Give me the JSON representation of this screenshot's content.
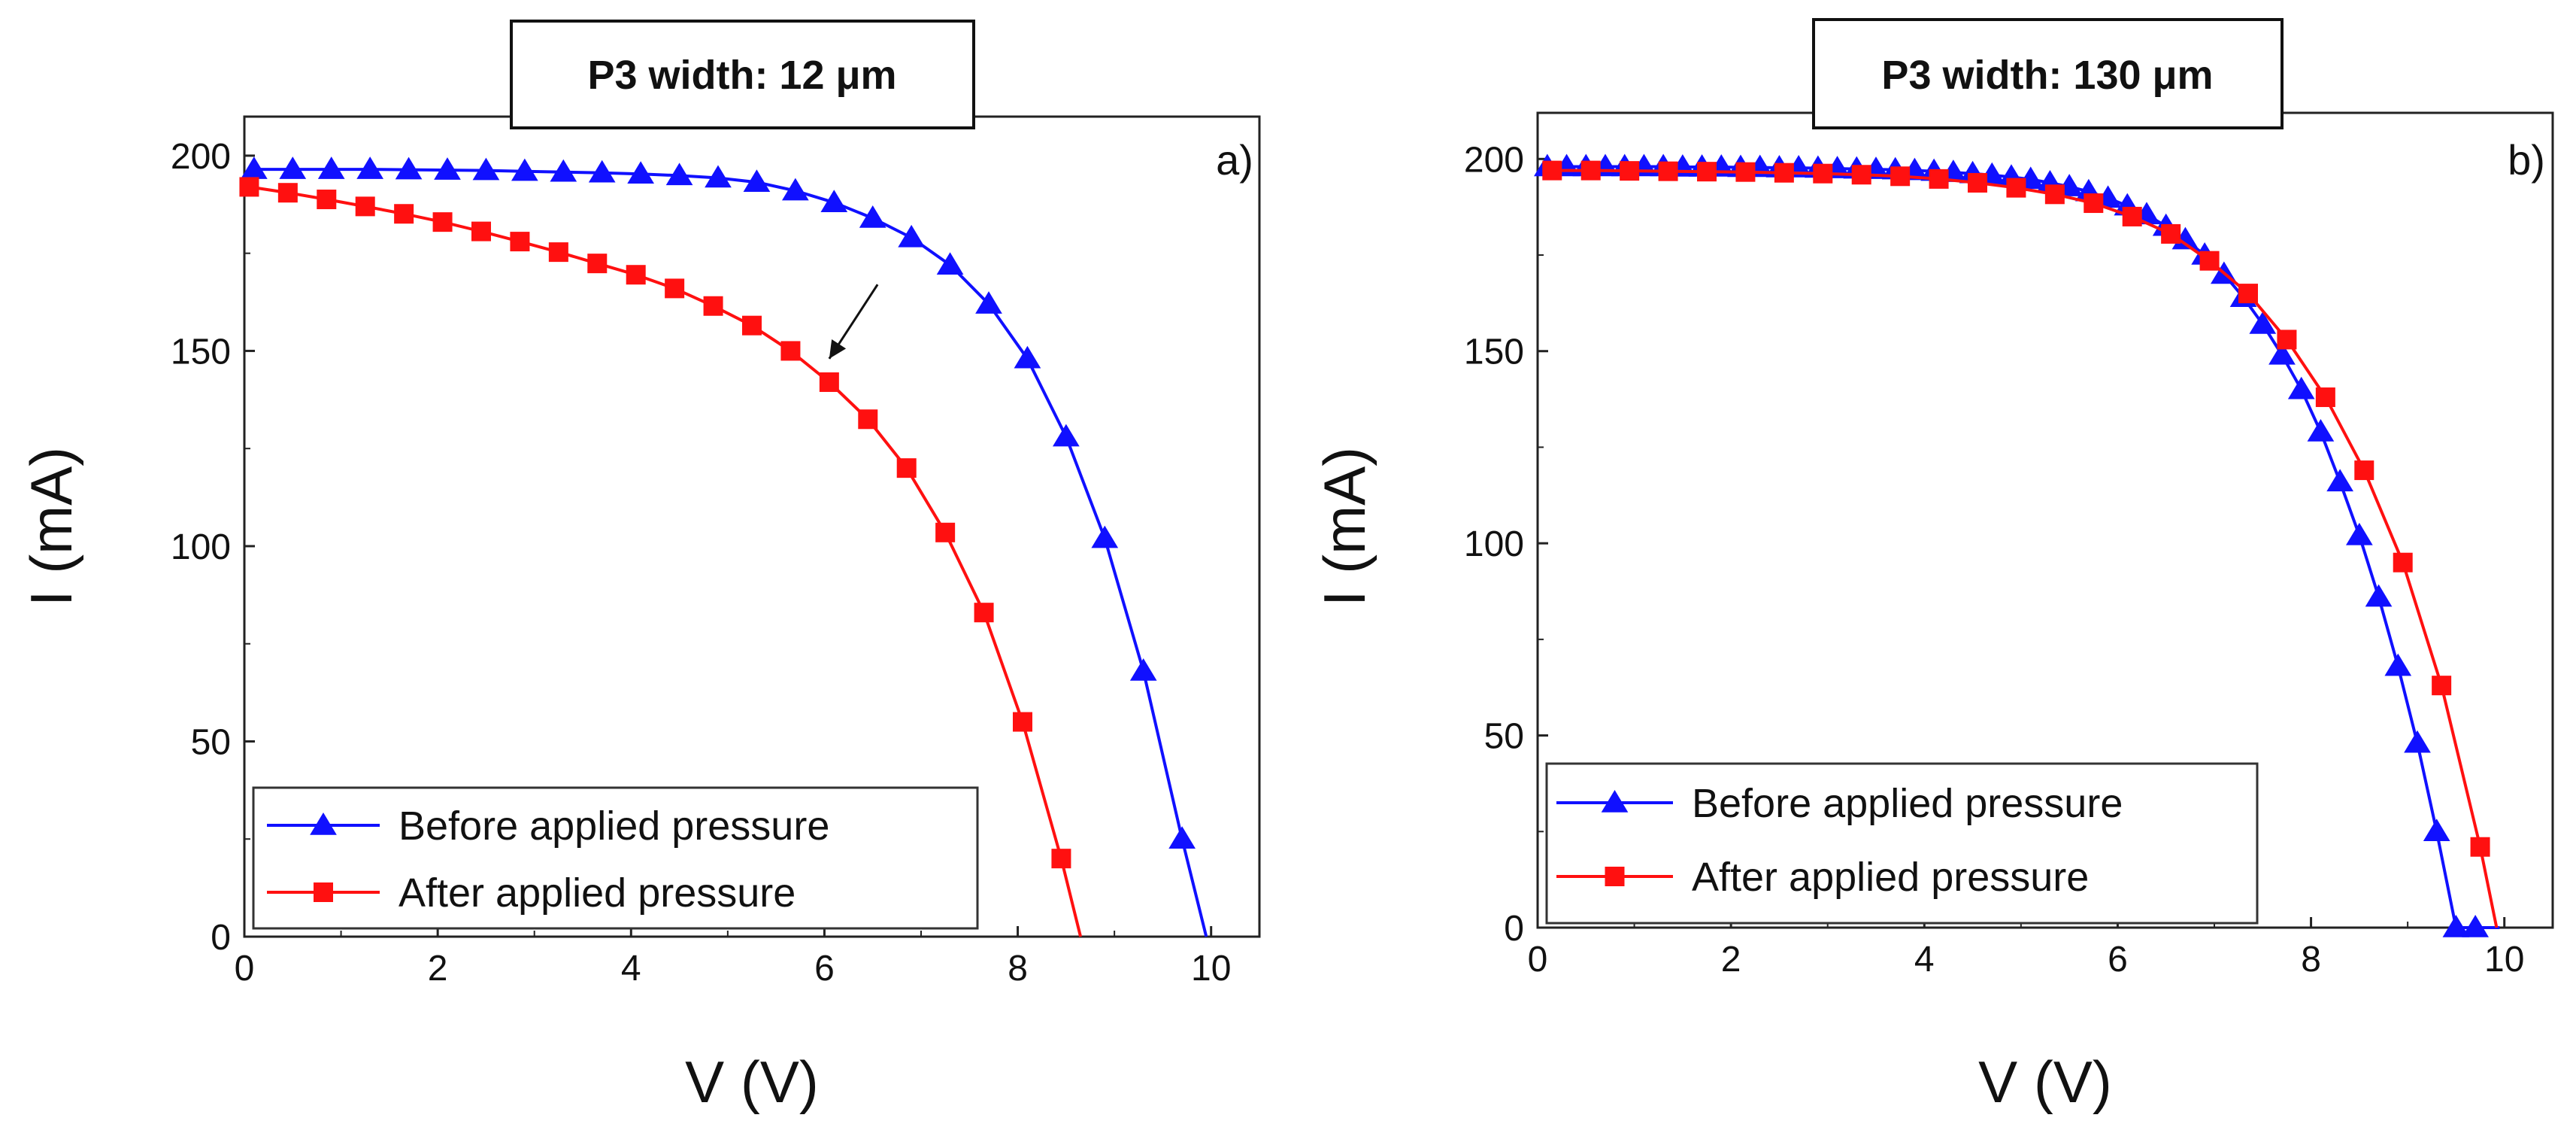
{
  "chart_data": [
    {
      "type": "line",
      "title": "P3 width: 12 μm",
      "panel_label": "a)",
      "xlabel": "V (V)",
      "ylabel": "I (mA)",
      "xlim": [
        0,
        10.5
      ],
      "ylim": [
        0,
        210
      ],
      "xticks": [
        0,
        2,
        4,
        6,
        8,
        10
      ],
      "yticks": [
        0,
        50,
        100,
        150,
        200
      ],
      "grid": false,
      "legend_position": "bottom-left",
      "annotation": "arrow pointing from the blue curve toward the red curve",
      "series": [
        {
          "name": "Before applied pressure",
          "color": "#1010ff",
          "marker": "triangle",
          "x": [
            0.1,
            0.5,
            0.9,
            1.3,
            1.7,
            2.1,
            2.5,
            2.9,
            3.3,
            3.7,
            4.1,
            4.5,
            4.9,
            5.3,
            5.7,
            6.1,
            6.5,
            6.9,
            7.3,
            7.7,
            8.1,
            8.5,
            8.9,
            9.3,
            9.7,
            9.95
          ],
          "y": [
            196.5,
            196.5,
            196.5,
            196.5,
            196.4,
            196.3,
            196.2,
            196.0,
            195.8,
            195.6,
            195.3,
            194.9,
            194.3,
            193.2,
            191.0,
            188.0,
            184.0,
            179.0,
            172.0,
            162.0,
            148.0,
            128.0,
            102.0,
            68.0,
            25.0,
            0.0
          ],
          "marker_x": [
            0.1,
            0.5,
            0.9,
            1.3,
            1.7,
            2.1,
            2.5,
            2.9,
            3.3,
            3.7,
            4.1,
            4.5,
            4.9,
            5.3,
            5.7,
            6.1,
            6.5,
            6.9,
            7.3,
            7.7,
            8.1,
            8.5,
            8.9,
            9.3,
            9.7
          ]
        },
        {
          "name": "After applied pressure",
          "color": "#ff1010",
          "marker": "square",
          "x": [
            0.05,
            0.45,
            0.85,
            1.25,
            1.65,
            2.05,
            2.45,
            2.85,
            3.25,
            3.65,
            4.05,
            4.45,
            4.85,
            5.25,
            5.65,
            6.05,
            6.45,
            6.85,
            7.25,
            7.65,
            8.05,
            8.45,
            8.65
          ],
          "y": [
            192.0,
            190.5,
            188.8,
            187.0,
            185.1,
            183.0,
            180.6,
            178.0,
            175.3,
            172.4,
            169.5,
            166.0,
            161.5,
            156.5,
            150.0,
            142.0,
            132.5,
            120.0,
            103.5,
            83.0,
            55.0,
            20.0,
            0.0
          ],
          "marker_x": [
            0.05,
            0.45,
            0.85,
            1.25,
            1.65,
            2.05,
            2.45,
            2.85,
            3.25,
            3.65,
            4.05,
            4.45,
            4.85,
            5.25,
            5.65,
            6.05,
            6.45,
            6.85,
            7.25,
            7.65,
            8.05,
            8.45
          ]
        }
      ]
    },
    {
      "type": "line",
      "title": "P3 width: 130 μm",
      "panel_label": "b)",
      "xlabel": "V (V)",
      "ylabel": "I (mA)",
      "xlim": [
        0,
        10.5
      ],
      "ylim": [
        0,
        212
      ],
      "xticks": [
        0,
        2,
        4,
        6,
        8,
        10
      ],
      "yticks": [
        0,
        50,
        100,
        150,
        200
      ],
      "grid": false,
      "legend_position": "bottom-left",
      "series": [
        {
          "name": "Before applied pressure",
          "color": "#1010ff",
          "marker": "triangle",
          "x": [
            0.1,
            0.3,
            0.5,
            0.7,
            0.9,
            1.1,
            1.3,
            1.5,
            1.7,
            1.9,
            2.1,
            2.3,
            2.5,
            2.7,
            2.9,
            3.1,
            3.3,
            3.5,
            3.7,
            3.9,
            4.1,
            4.3,
            4.5,
            4.7,
            4.9,
            5.1,
            5.3,
            5.5,
            5.7,
            5.9,
            6.1,
            6.3,
            6.5,
            6.7,
            6.9,
            7.1,
            7.3,
            7.5,
            7.7,
            7.9,
            8.1,
            8.3,
            8.5,
            8.7,
            8.9,
            9.1,
            9.3,
            9.5,
            9.7,
            9.95
          ],
          "y": [
            198.0,
            198.0,
            198.0,
            198.0,
            198.0,
            198.0,
            198.0,
            197.9,
            197.9,
            197.9,
            197.8,
            197.8,
            197.7,
            197.7,
            197.6,
            197.5,
            197.4,
            197.3,
            197.2,
            197.0,
            196.8,
            196.5,
            196.2,
            195.8,
            195.3,
            194.7,
            193.8,
            192.8,
            191.5,
            189.8,
            187.8,
            185.5,
            182.5,
            179.0,
            175.0,
            170.0,
            164.0,
            157.0,
            149.0,
            140.0,
            129.0,
            116.0,
            102.0,
            86.0,
            68.0,
            48.0,
            25.0,
            0.0,
            0.0,
            0.0
          ],
          "marker_x": [
            0.1,
            0.3,
            0.5,
            0.7,
            0.9,
            1.1,
            1.3,
            1.5,
            1.7,
            1.9,
            2.1,
            2.3,
            2.5,
            2.7,
            2.9,
            3.1,
            3.3,
            3.5,
            3.7,
            3.9,
            4.1,
            4.3,
            4.5,
            4.7,
            4.9,
            5.1,
            5.3,
            5.5,
            5.7,
            5.9,
            6.1,
            6.3,
            6.5,
            6.7,
            6.9,
            7.1,
            7.3,
            7.5,
            7.7,
            7.9,
            8.1,
            8.3,
            8.5,
            8.7,
            8.9,
            9.1,
            9.3,
            9.5,
            9.7
          ]
        },
        {
          "name": "After applied pressure",
          "color": "#ff1010",
          "marker": "square",
          "x": [
            0.15,
            0.55,
            0.95,
            1.35,
            1.75,
            2.15,
            2.55,
            2.95,
            3.35,
            3.75,
            4.15,
            4.55,
            4.95,
            5.35,
            5.75,
            6.15,
            6.55,
            6.95,
            7.35,
            7.75,
            8.15,
            8.55,
            8.95,
            9.35,
            9.75,
            9.92
          ],
          "y": [
            197.0,
            197.0,
            196.9,
            196.8,
            196.7,
            196.6,
            196.4,
            196.2,
            195.9,
            195.5,
            194.8,
            193.8,
            192.5,
            190.8,
            188.5,
            185.0,
            180.5,
            173.5,
            165.0,
            153.0,
            138.0,
            119.0,
            95.0,
            63.0,
            21.0,
            0.0
          ],
          "marker_x": [
            0.15,
            0.55,
            0.95,
            1.35,
            1.75,
            2.15,
            2.55,
            2.95,
            3.35,
            3.75,
            4.15,
            4.55,
            4.95,
            5.35,
            5.75,
            6.15,
            6.55,
            6.95,
            7.35,
            7.75,
            8.15,
            8.55,
            8.95,
            9.35,
            9.75
          ]
        }
      ]
    }
  ]
}
